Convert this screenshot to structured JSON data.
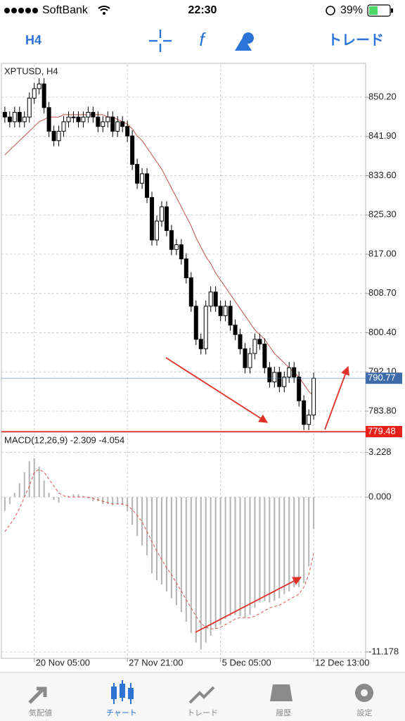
{
  "status_bar": {
    "carrier": "SoftBank",
    "time": "22:30",
    "battery": "39%"
  },
  "toolbar": {
    "timeframe": "H4",
    "function_icon": "f",
    "trade": "トレード"
  },
  "chart_data": [
    {
      "type": "candlestick",
      "title": "XPTUSD, H4",
      "x": [
        0,
        1,
        2,
        3,
        4,
        5,
        6,
        7,
        8,
        9,
        10,
        11,
        12,
        13,
        14,
        15,
        16,
        17,
        18,
        19,
        20,
        21,
        22,
        23,
        24,
        25,
        26,
        27,
        28,
        29,
        30,
        31,
        32,
        33,
        34,
        35,
        36,
        37,
        38,
        39,
        40,
        41,
        42,
        43,
        44,
        45,
        46,
        47,
        48,
        49,
        50,
        51,
        52,
        53,
        54,
        55,
        56,
        57,
        58,
        59,
        60,
        61,
        62,
        63
      ],
      "open": [
        847,
        846,
        845,
        847,
        845,
        846,
        850,
        852,
        853,
        848,
        843,
        841,
        843,
        845,
        846,
        846,
        845,
        846,
        847,
        846,
        844,
        845,
        846,
        843,
        845,
        844,
        842,
        836,
        832,
        834,
        829,
        820,
        824,
        827,
        822,
        818,
        819,
        816,
        812,
        806,
        799,
        797,
        806,
        809,
        806,
        804,
        806,
        802,
        800,
        797,
        793,
        796,
        799,
        798,
        793,
        790,
        792,
        789,
        791,
        793,
        791,
        786,
        781,
        783
      ],
      "high": [
        848.2,
        847.2,
        848.2,
        848.2,
        847.2,
        851.2,
        853.2,
        854.2,
        854.2,
        849.2,
        844.2,
        844.2,
        846.2,
        847.2,
        847.2,
        847.2,
        847.2,
        848.2,
        848.2,
        847.2,
        846.2,
        847.2,
        847.2,
        846.2,
        846.2,
        845.2,
        843.2,
        837.2,
        835.2,
        835.2,
        830.2,
        825.2,
        828.2,
        828.2,
        823.2,
        820.2,
        820.2,
        817.2,
        813.2,
        807.2,
        800.2,
        807.2,
        810.2,
        810.2,
        807.2,
        807.2,
        807.2,
        803.2,
        801.2,
        798.2,
        797.2,
        800.2,
        800.2,
        799.2,
        794.2,
        793.2,
        793.2,
        792.2,
        794.2,
        794.2,
        792.2,
        787.2,
        784.2,
        792
      ],
      "low": [
        844.8,
        843.8,
        843.8,
        843.8,
        843.8,
        844.8,
        848.8,
        850.8,
        846.8,
        841.8,
        839.8,
        839.8,
        841.8,
        843.8,
        844.8,
        843.8,
        843.8,
        844.8,
        844.8,
        842.8,
        842.8,
        843.8,
        841.8,
        841.8,
        842.8,
        840.8,
        834.8,
        830.8,
        830.8,
        827.8,
        818.8,
        818.8,
        822.8,
        820.8,
        816.8,
        816.8,
        814.8,
        810.8,
        804.8,
        797.8,
        795.8,
        795.8,
        804.8,
        804.8,
        802.8,
        802.8,
        800.8,
        798.8,
        795.8,
        791.8,
        791.8,
        794.8,
        796.8,
        791.8,
        788.8,
        788.8,
        787.8,
        787.8,
        789.8,
        789.8,
        784.8,
        779.8,
        779.8,
        782
      ],
      "close": [
        846,
        845,
        847,
        845,
        846,
        850,
        852,
        853,
        848,
        843,
        841,
        843,
        845,
        846,
        846,
        845,
        846,
        847,
        846,
        844,
        845,
        846,
        843,
        845,
        844,
        842,
        836,
        832,
        834,
        829,
        820,
        824,
        827,
        822,
        818,
        819,
        816,
        812,
        806,
        799,
        797,
        806,
        809,
        806,
        804,
        806,
        802,
        800,
        797,
        793,
        796,
        799,
        798,
        793,
        790,
        792,
        789,
        791,
        793,
        791,
        786,
        781,
        783,
        790.77
      ],
      "ma": [
        838,
        839,
        840,
        841,
        842,
        843,
        844,
        845,
        845.5,
        846,
        846,
        846,
        846.5,
        846.5,
        846.5,
        846.5,
        846.5,
        846.5,
        846.5,
        846.5,
        846.5,
        846,
        846,
        845.5,
        845,
        844.5,
        843.5,
        842,
        841,
        839.5,
        838,
        836.5,
        835,
        833,
        831,
        829,
        827,
        825,
        823,
        820.5,
        818.5,
        816.5,
        815,
        813,
        811.5,
        810,
        808.5,
        807,
        805.5,
        804,
        802.5,
        801,
        800,
        799,
        797.5,
        796,
        795,
        794,
        793,
        792,
        791,
        789.5,
        788,
        787
      ],
      "ma_color": "#c0504d",
      "color": "#000000",
      "hlines": [
        790.77,
        779.48
      ],
      "hline_colors": [
        "#3d6aa8",
        "#e8211b"
      ],
      "xlim": [
        -0.7,
        73.6
      ],
      "ylim": [
        779.48,
        857.05
      ],
      "yticks": [
        {
          "value": 850.2,
          "label": "850.20"
        },
        {
          "value": 841.9,
          "label": "841.90"
        },
        {
          "value": 833.6,
          "label": "833.60"
        },
        {
          "value": 825.3,
          "label": "825.30"
        },
        {
          "value": 817,
          "label": "817.00"
        },
        {
          "value": 808.7,
          "label": "808.70"
        },
        {
          "value": 800.4,
          "label": "800.40"
        },
        {
          "value": 792.1,
          "label": "792.10"
        },
        {
          "value": 783.8,
          "label": "783.80"
        }
      ],
      "grid": true
    },
    {
      "type": "bar",
      "title": "MACD(12,26,9) -2.309 -4.054",
      "values": [
        -1,
        -0.5,
        0.3,
        1,
        1.8,
        2.6,
        2.8,
        2.2,
        1.2,
        0.3,
        -0.2,
        -0.4,
        0,
        0.1,
        0.2,
        0.2,
        0.1,
        -0.1,
        -0.3,
        -0.3,
        -0.5,
        -0.5,
        -0.6,
        -0.5,
        -0.6,
        -1,
        -2,
        -2.8,
        -3.5,
        -4.2,
        -5.5,
        -6,
        -6.3,
        -6.8,
        -7.3,
        -7.8,
        -8.3,
        -9,
        -9.8,
        -10.5,
        -11,
        -10.5,
        -10,
        -9.5,
        -9.2,
        -8.8,
        -8.6,
        -8.5,
        -8.6,
        -8.7,
        -8.5,
        -8,
        -7.6,
        -7.5,
        -7.6,
        -7.5,
        -7.3,
        -7,
        -6.8,
        -6.5,
        -6.5,
        -6.2,
        -5,
        -2.309
      ],
      "signal": [
        -2.5,
        -2,
        -1.5,
        -0.8,
        0,
        0.8,
        1.8,
        2,
        1.8,
        1.3,
        0.8,
        0.3,
        0.1,
        0,
        0,
        0,
        0,
        0,
        -0.1,
        -0.2,
        -0.3,
        -0.4,
        -0.5,
        -0.5,
        -0.5,
        -0.6,
        -0.9,
        -1.3,
        -1.8,
        -2.5,
        -3.2,
        -3.9,
        -4.5,
        -5.1,
        -5.6,
        -6.2,
        -6.8,
        -7.4,
        -8,
        -8.6,
        -9.1,
        -9.4,
        -9.5,
        -9.5,
        -9.4,
        -9.2,
        -9,
        -8.8,
        -8.7,
        -8.7,
        -8.7,
        -8.6,
        -8.4,
        -8.2,
        -8,
        -7.9,
        -7.8,
        -7.6,
        -7.4,
        -7.2,
        -7,
        -6.5,
        -5.6,
        -4.054
      ],
      "color": "#b4b4b4",
      "signal_color": "#d9534f",
      "xlim": [
        -0.7,
        73.6
      ],
      "ylim": [
        -11.636,
        4.573
      ],
      "yticks": [
        3.228,
        {
          "value": 0,
          "label": "0.000"
        },
        -11.178
      ],
      "xticks": [
        {
          "value": 6,
          "label": "20 Nov 05:00"
        },
        {
          "value": 25,
          "label": "27 Nov 21:00"
        },
        {
          "value": 44,
          "label": "5 Dec 05:00"
        },
        {
          "value": 63,
          "label": "12 Dec 13:00"
        }
      ],
      "grid": true
    }
  ],
  "tab_bar": {
    "tabs": [
      "気配値",
      "チャート",
      "トレード",
      "履歴",
      "設定"
    ],
    "active": 1
  }
}
